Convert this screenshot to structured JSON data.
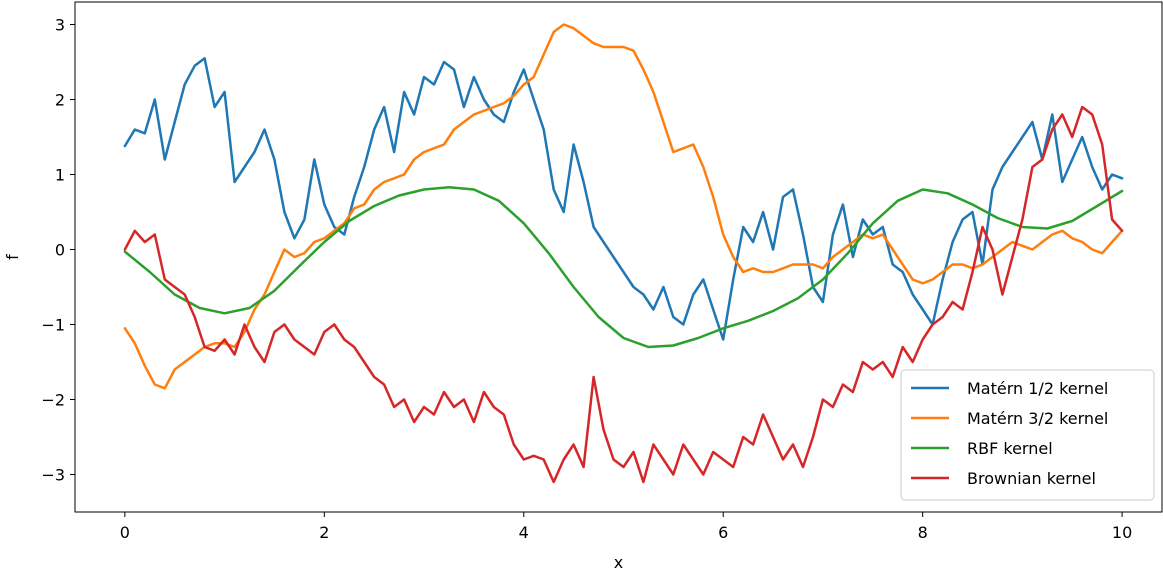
{
  "chart_data": {
    "type": "line",
    "title": "",
    "xlabel": "x",
    "ylabel": "f",
    "xlim": [
      -0.5,
      10.4
    ],
    "ylim": [
      -3.5,
      3.3
    ],
    "xticks": [
      0,
      2,
      4,
      6,
      8,
      10
    ],
    "yticks": [
      -3,
      -2,
      -1,
      0,
      1,
      2,
      3
    ],
    "xtick_labels": [
      "0",
      "2",
      "4",
      "6",
      "8",
      "10"
    ],
    "ytick_labels": [
      "−3",
      "−2",
      "−1",
      "0",
      "1",
      "2",
      "3"
    ],
    "grid": false,
    "legend": {
      "position": "bottom-right"
    },
    "series": [
      {
        "name": "Matérn 1/2 kernel",
        "color": "#1f77b4",
        "x": [
          0,
          0.1,
          0.2,
          0.3,
          0.4,
          0.5,
          0.6,
          0.7,
          0.8,
          0.9,
          1.0,
          1.1,
          1.2,
          1.3,
          1.4,
          1.5,
          1.6,
          1.7,
          1.8,
          1.9,
          2.0,
          2.1,
          2.2,
          2.3,
          2.4,
          2.5,
          2.6,
          2.7,
          2.8,
          2.9,
          3.0,
          3.1,
          3.2,
          3.3,
          3.4,
          3.5,
          3.6,
          3.7,
          3.8,
          3.9,
          4.0,
          4.1,
          4.2,
          4.3,
          4.4,
          4.5,
          4.6,
          4.7,
          4.8,
          4.9,
          5.0,
          5.1,
          5.2,
          5.3,
          5.4,
          5.5,
          5.6,
          5.7,
          5.8,
          5.9,
          6.0,
          6.1,
          6.2,
          6.3,
          6.4,
          6.5,
          6.6,
          6.7,
          6.8,
          6.9,
          7.0,
          7.1,
          7.2,
          7.3,
          7.4,
          7.5,
          7.6,
          7.7,
          7.8,
          7.9,
          8.0,
          8.1,
          8.2,
          8.3,
          8.4,
          8.5,
          8.6,
          8.7,
          8.8,
          8.9,
          9.0,
          9.1,
          9.2,
          9.3,
          9.4,
          9.5,
          9.6,
          9.7,
          9.8,
          9.9,
          10.0
        ],
        "y": [
          1.38,
          1.6,
          1.55,
          2.0,
          1.2,
          1.7,
          2.2,
          2.45,
          2.55,
          1.9,
          2.1,
          0.9,
          1.1,
          1.3,
          1.6,
          1.2,
          0.5,
          0.15,
          0.4,
          1.2,
          0.6,
          0.3,
          0.2,
          0.7,
          1.1,
          1.6,
          1.9,
          1.3,
          2.1,
          1.8,
          2.3,
          2.2,
          2.5,
          2.4,
          1.9,
          2.3,
          2.0,
          1.8,
          1.7,
          2.1,
          2.4,
          2.0,
          1.6,
          0.8,
          0.5,
          1.4,
          0.9,
          0.3,
          0.1,
          -0.1,
          -0.3,
          -0.5,
          -0.6,
          -0.8,
          -0.5,
          -0.9,
          -1.0,
          -0.6,
          -0.4,
          -0.8,
          -1.2,
          -0.4,
          0.3,
          0.1,
          0.5,
          0.0,
          0.7,
          0.8,
          0.2,
          -0.5,
          -0.7,
          0.2,
          0.6,
          -0.1,
          0.4,
          0.2,
          0.3,
          -0.2,
          -0.3,
          -0.6,
          -0.8,
          -1.0,
          -0.4,
          0.1,
          0.4,
          0.5,
          -0.2,
          0.8,
          1.1,
          1.3,
          1.5,
          1.7,
          1.2,
          1.8,
          0.9,
          1.2,
          1.5,
          1.1,
          0.8,
          1.0,
          0.95
        ]
      },
      {
        "name": "Matérn 3/2 kernel",
        "color": "#ff7f0e",
        "x": [
          0,
          0.1,
          0.2,
          0.3,
          0.4,
          0.5,
          0.6,
          0.7,
          0.8,
          0.9,
          1.0,
          1.1,
          1.2,
          1.3,
          1.4,
          1.5,
          1.6,
          1.7,
          1.8,
          1.9,
          2.0,
          2.1,
          2.2,
          2.3,
          2.4,
          2.5,
          2.6,
          2.7,
          2.8,
          2.9,
          3.0,
          3.1,
          3.2,
          3.3,
          3.4,
          3.5,
          3.6,
          3.7,
          3.8,
          3.9,
          4.0,
          4.1,
          4.2,
          4.3,
          4.4,
          4.5,
          4.6,
          4.7,
          4.8,
          4.9,
          5.0,
          5.1,
          5.2,
          5.3,
          5.4,
          5.5,
          5.6,
          5.7,
          5.8,
          5.9,
          6.0,
          6.1,
          6.2,
          6.3,
          6.4,
          6.5,
          6.6,
          6.7,
          6.8,
          6.9,
          7.0,
          7.1,
          7.2,
          7.3,
          7.4,
          7.5,
          7.6,
          7.7,
          7.8,
          7.9,
          8.0,
          8.1,
          8.2,
          8.3,
          8.4,
          8.5,
          8.6,
          8.7,
          8.8,
          8.9,
          9.0,
          9.1,
          9.2,
          9.3,
          9.4,
          9.5,
          9.6,
          9.7,
          9.8,
          9.9,
          10.0
        ],
        "y": [
          -1.05,
          -1.25,
          -1.55,
          -1.8,
          -1.85,
          -1.6,
          -1.5,
          -1.4,
          -1.3,
          -1.25,
          -1.25,
          -1.3,
          -1.1,
          -0.8,
          -0.6,
          -0.3,
          0.0,
          -0.1,
          -0.05,
          0.1,
          0.15,
          0.25,
          0.35,
          0.55,
          0.6,
          0.8,
          0.9,
          0.95,
          1.0,
          1.2,
          1.3,
          1.35,
          1.4,
          1.6,
          1.7,
          1.8,
          1.85,
          1.9,
          1.95,
          2.05,
          2.2,
          2.3,
          2.6,
          2.9,
          3.0,
          2.95,
          2.85,
          2.75,
          2.7,
          2.7,
          2.7,
          2.65,
          2.4,
          2.1,
          1.7,
          1.3,
          1.35,
          1.4,
          1.1,
          0.7,
          0.2,
          -0.1,
          -0.3,
          -0.25,
          -0.3,
          -0.3,
          -0.25,
          -0.2,
          -0.2,
          -0.2,
          -0.25,
          -0.1,
          0.0,
          0.1,
          0.2,
          0.15,
          0.2,
          0.0,
          -0.2,
          -0.4,
          -0.45,
          -0.4,
          -0.3,
          -0.2,
          -0.2,
          -0.25,
          -0.2,
          -0.1,
          0.0,
          0.1,
          0.05,
          0.0,
          0.1,
          0.2,
          0.25,
          0.15,
          0.1,
          0.0,
          -0.05,
          0.1,
          0.25
        ]
      },
      {
        "name": "RBF kernel",
        "color": "#2ca02c",
        "x": [
          0,
          0.25,
          0.5,
          0.75,
          1.0,
          1.25,
          1.5,
          1.75,
          2.0,
          2.25,
          2.5,
          2.75,
          3.0,
          3.25,
          3.5,
          3.75,
          4.0,
          4.25,
          4.5,
          4.75,
          5.0,
          5.25,
          5.5,
          5.75,
          6.0,
          6.25,
          6.5,
          6.75,
          7.0,
          7.25,
          7.5,
          7.75,
          8.0,
          8.25,
          8.5,
          8.75,
          9.0,
          9.25,
          9.5,
          9.75,
          10.0
        ],
        "y": [
          -0.03,
          -0.3,
          -0.6,
          -0.78,
          -0.85,
          -0.78,
          -0.55,
          -0.22,
          0.1,
          0.38,
          0.58,
          0.72,
          0.8,
          0.83,
          0.8,
          0.65,
          0.35,
          -0.05,
          -0.5,
          -0.9,
          -1.18,
          -1.3,
          -1.28,
          -1.18,
          -1.05,
          -0.95,
          -0.82,
          -0.65,
          -0.4,
          -0.05,
          0.35,
          0.65,
          0.8,
          0.75,
          0.6,
          0.42,
          0.3,
          0.28,
          0.38,
          0.58,
          0.78
        ]
      },
      {
        "name": "Brownian kernel",
        "color": "#d62728",
        "x": [
          0,
          0.1,
          0.2,
          0.3,
          0.4,
          0.5,
          0.6,
          0.7,
          0.8,
          0.9,
          1.0,
          1.1,
          1.2,
          1.3,
          1.4,
          1.5,
          1.6,
          1.7,
          1.8,
          1.9,
          2.0,
          2.1,
          2.2,
          2.3,
          2.4,
          2.5,
          2.6,
          2.7,
          2.8,
          2.9,
          3.0,
          3.1,
          3.2,
          3.3,
          3.4,
          3.5,
          3.6,
          3.7,
          3.8,
          3.9,
          4.0,
          4.1,
          4.2,
          4.3,
          4.4,
          4.5,
          4.6,
          4.7,
          4.8,
          4.9,
          5.0,
          5.1,
          5.2,
          5.3,
          5.4,
          5.5,
          5.6,
          5.7,
          5.8,
          5.9,
          6.0,
          6.1,
          6.2,
          6.3,
          6.4,
          6.5,
          6.6,
          6.7,
          6.8,
          6.9,
          7.0,
          7.1,
          7.2,
          7.3,
          7.4,
          7.5,
          7.6,
          7.7,
          7.8,
          7.9,
          8.0,
          8.1,
          8.2,
          8.3,
          8.4,
          8.5,
          8.6,
          8.7,
          8.8,
          8.9,
          9.0,
          9.1,
          9.2,
          9.3,
          9.4,
          9.5,
          9.6,
          9.7,
          9.8,
          9.9,
          10.0
        ],
        "y": [
          0.0,
          0.25,
          0.1,
          0.2,
          -0.4,
          -0.5,
          -0.6,
          -0.9,
          -1.3,
          -1.35,
          -1.2,
          -1.4,
          -1.0,
          -1.3,
          -1.5,
          -1.1,
          -1.0,
          -1.2,
          -1.3,
          -1.4,
          -1.1,
          -1.0,
          -1.2,
          -1.3,
          -1.5,
          -1.7,
          -1.8,
          -2.1,
          -2.0,
          -2.3,
          -2.1,
          -2.2,
          -1.9,
          -2.1,
          -2.0,
          -2.3,
          -1.9,
          -2.1,
          -2.2,
          -2.6,
          -2.8,
          -2.75,
          -2.8,
          -3.1,
          -2.8,
          -2.6,
          -2.9,
          -1.7,
          -2.4,
          -2.8,
          -2.9,
          -2.7,
          -3.1,
          -2.6,
          -2.8,
          -3.0,
          -2.6,
          -2.8,
          -3.0,
          -2.7,
          -2.8,
          -2.9,
          -2.5,
          -2.6,
          -2.2,
          -2.5,
          -2.8,
          -2.6,
          -2.9,
          -2.5,
          -2.0,
          -2.1,
          -1.8,
          -1.9,
          -1.5,
          -1.6,
          -1.5,
          -1.7,
          -1.3,
          -1.5,
          -1.2,
          -1.0,
          -0.9,
          -0.7,
          -0.8,
          -0.3,
          0.3,
          0.0,
          -0.6,
          -0.1,
          0.4,
          1.1,
          1.2,
          1.6,
          1.8,
          1.5,
          1.9,
          1.8,
          1.4,
          0.4,
          0.25
        ]
      }
    ]
  }
}
